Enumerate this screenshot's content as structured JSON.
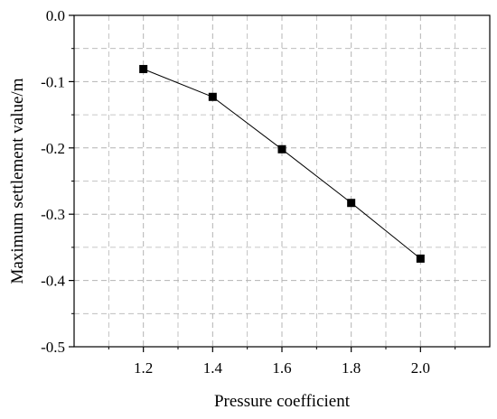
{
  "chart_data": {
    "type": "line",
    "title": "",
    "xlabel": "Pressure coefficient",
    "ylabel": "Maximum settlement value/m",
    "x": [
      1.2,
      1.4,
      1.6,
      1.8,
      2.0
    ],
    "series": [
      {
        "name": "",
        "values": [
          -0.081,
          -0.123,
          -0.202,
          -0.283,
          -0.367
        ]
      }
    ],
    "xlim": [
      1.0,
      2.2
    ],
    "ylim": [
      -0.5,
      0.0
    ],
    "xticks": [
      1.2,
      1.4,
      1.6,
      1.8,
      2.0
    ],
    "xtick_labels": [
      "1.2",
      "1.4",
      "1.6",
      "1.8",
      "2.0"
    ],
    "yticks": [
      0.0,
      -0.1,
      -0.2,
      -0.3,
      -0.4,
      -0.5
    ],
    "ytick_labels": [
      "0.0",
      "-0.1",
      "-0.2",
      "-0.3",
      "-0.4",
      "-0.5"
    ],
    "x_minor_grid": [
      1.1,
      1.3,
      1.5,
      1.7,
      1.9,
      2.1
    ],
    "y_minor_grid": [
      -0.05,
      -0.15,
      -0.25,
      -0.35,
      -0.45
    ],
    "grid": true,
    "marker": "square",
    "colors": {
      "line": "#000000",
      "marker": "#000000",
      "grid": "#b4b4b4"
    }
  }
}
